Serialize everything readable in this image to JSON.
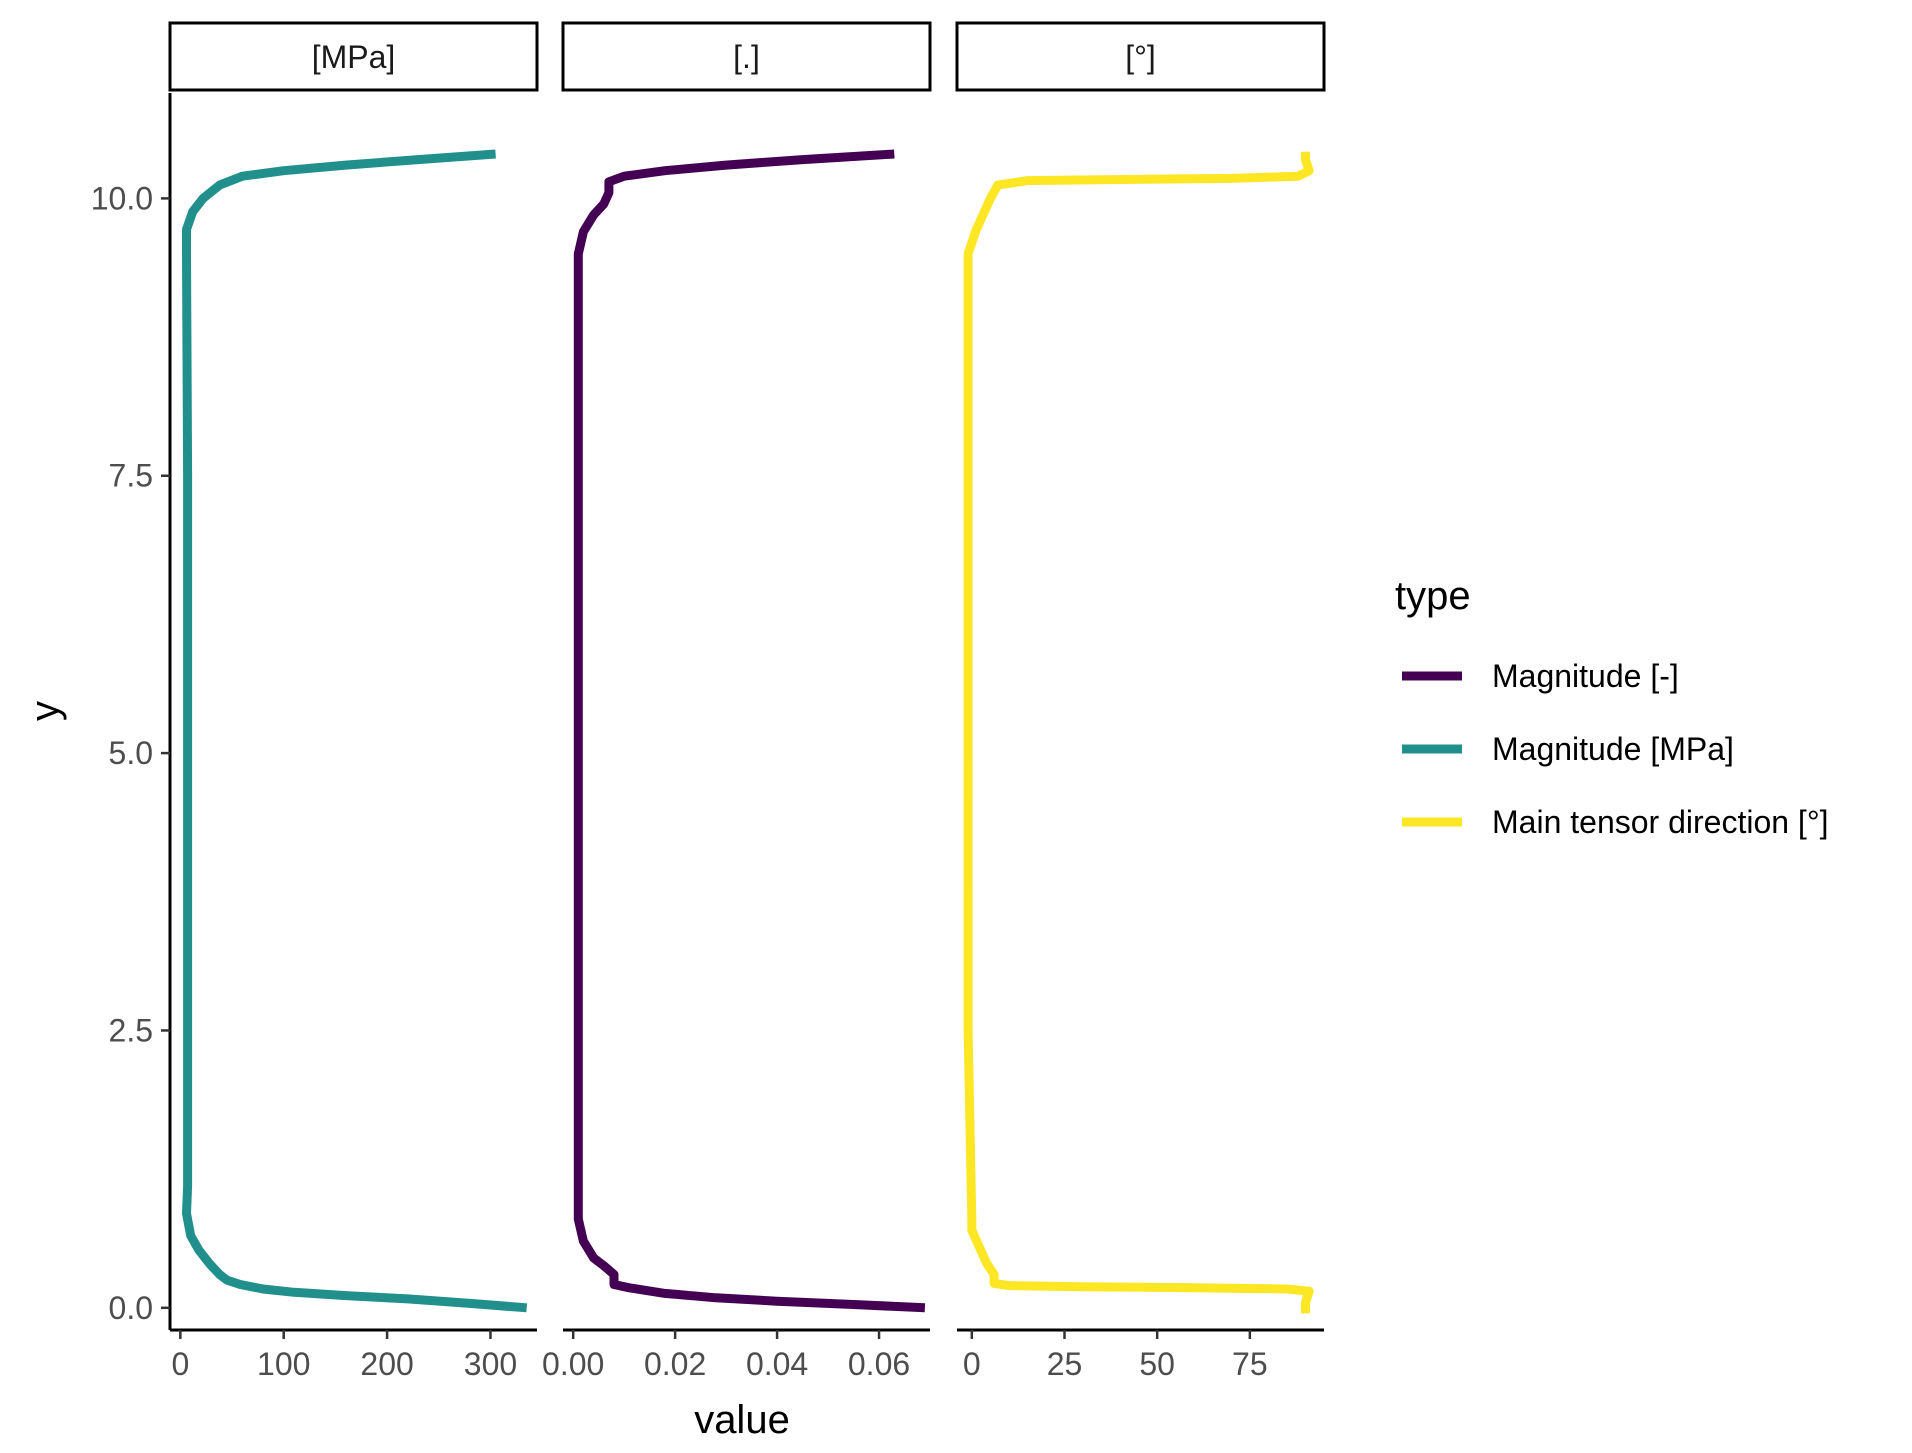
{
  "chart_data": {
    "type": "line",
    "xlabel": "value",
    "ylabel": "y",
    "ylim": [
      -0.2,
      10.95
    ],
    "yticks": [
      0.0,
      2.5,
      5.0,
      7.5,
      10.0
    ],
    "ytick_labels": [
      "0.0",
      "2.5",
      "5.0",
      "7.5",
      "10.0"
    ],
    "legend": {
      "title": "type",
      "position": "right",
      "entries": [
        {
          "label": "Magnitude [-]",
          "color": "#440154"
        },
        {
          "label": "Magnitude [MPa]",
          "color": "#21908C"
        },
        {
          "label": "Main tensor direction [°]",
          "color": "#FDE725"
        }
      ]
    },
    "panels": [
      {
        "strip": "[MPa]",
        "xlim": [
          -10,
          345
        ],
        "xticks": [
          0,
          100,
          200,
          300
        ],
        "xtick_labels": [
          "0",
          "100",
          "200",
          "300"
        ],
        "series": [
          {
            "name": "Magnitude [MPa]",
            "color": "#21908C",
            "points": [
              [
                335,
                0.0
              ],
              [
                280,
                0.04
              ],
              [
                220,
                0.08
              ],
              [
                160,
                0.11
              ],
              [
                110,
                0.14
              ],
              [
                80,
                0.17
              ],
              [
                58,
                0.21
              ],
              [
                45,
                0.25
              ],
              [
                38,
                0.3
              ],
              [
                28,
                0.4
              ],
              [
                18,
                0.52
              ],
              [
                10,
                0.65
              ],
              [
                6,
                0.85
              ],
              [
                7,
                1.1
              ],
              [
                7,
                2.5
              ],
              [
                7,
                5.0
              ],
              [
                7,
                7.5
              ],
              [
                6,
                9.5
              ],
              [
                6,
                9.72
              ],
              [
                12,
                9.88
              ],
              [
                22,
                10.0
              ],
              [
                38,
                10.12
              ],
              [
                60,
                10.2
              ],
              [
                100,
                10.25
              ],
              [
                160,
                10.3
              ],
              [
                230,
                10.35
              ],
              [
                305,
                10.4
              ]
            ]
          }
        ]
      },
      {
        "strip": "[.]",
        "xlim": [
          -0.002,
          0.07
        ],
        "xticks": [
          0.0,
          0.02,
          0.04,
          0.06
        ],
        "xtick_labels": [
          "0.00",
          "0.02",
          "0.04",
          "0.06"
        ],
        "series": [
          {
            "name": "Magnitude [-]",
            "color": "#440154",
            "points": [
              [
                0.069,
                0.0
              ],
              [
                0.055,
                0.03
              ],
              [
                0.04,
                0.06
              ],
              [
                0.028,
                0.09
              ],
              [
                0.018,
                0.13
              ],
              [
                0.011,
                0.18
              ],
              [
                0.008,
                0.21
              ],
              [
                0.008,
                0.3
              ],
              [
                0.006,
                0.38
              ],
              [
                0.004,
                0.45
              ],
              [
                0.002,
                0.6
              ],
              [
                0.001,
                0.8
              ],
              [
                0.001,
                2.5
              ],
              [
                0.001,
                5.0
              ],
              [
                0.001,
                7.5
              ],
              [
                0.001,
                9.5
              ],
              [
                0.002,
                9.7
              ],
              [
                0.004,
                9.85
              ],
              [
                0.006,
                9.95
              ],
              [
                0.007,
                10.05
              ],
              [
                0.007,
                10.15
              ],
              [
                0.01,
                10.2
              ],
              [
                0.018,
                10.25
              ],
              [
                0.03,
                10.3
              ],
              [
                0.045,
                10.35
              ],
              [
                0.063,
                10.4
              ]
            ]
          }
        ]
      },
      {
        "strip": "[°]",
        "xlim": [
          -4,
          95
        ],
        "xticks": [
          0,
          25,
          50,
          75
        ],
        "xtick_labels": [
          "0",
          "25",
          "50",
          "75"
        ],
        "series": [
          {
            "name": "Main tensor direction [°]",
            "color": "#FDE725",
            "points": [
              [
                90,
                -0.05
              ],
              [
                90,
                0.05
              ],
              [
                91,
                0.15
              ],
              [
                85,
                0.17
              ],
              [
                60,
                0.18
              ],
              [
                30,
                0.19
              ],
              [
                10,
                0.2
              ],
              [
                6,
                0.22
              ],
              [
                6,
                0.3
              ],
              [
                4,
                0.4
              ],
              [
                2,
                0.55
              ],
              [
                0,
                0.7
              ],
              [
                0,
                0.8
              ],
              [
                -1,
                2.5
              ],
              [
                -1,
                5.0
              ],
              [
                -1,
                7.5
              ],
              [
                -1,
                9.5
              ],
              [
                1,
                9.7
              ],
              [
                3,
                9.85
              ],
              [
                5,
                10.0
              ],
              [
                7,
                10.12
              ],
              [
                15,
                10.16
              ],
              [
                40,
                10.17
              ],
              [
                70,
                10.18
              ],
              [
                88,
                10.2
              ],
              [
                91,
                10.25
              ],
              [
                90,
                10.35
              ],
              [
                90,
                10.42
              ]
            ]
          }
        ]
      }
    ]
  }
}
